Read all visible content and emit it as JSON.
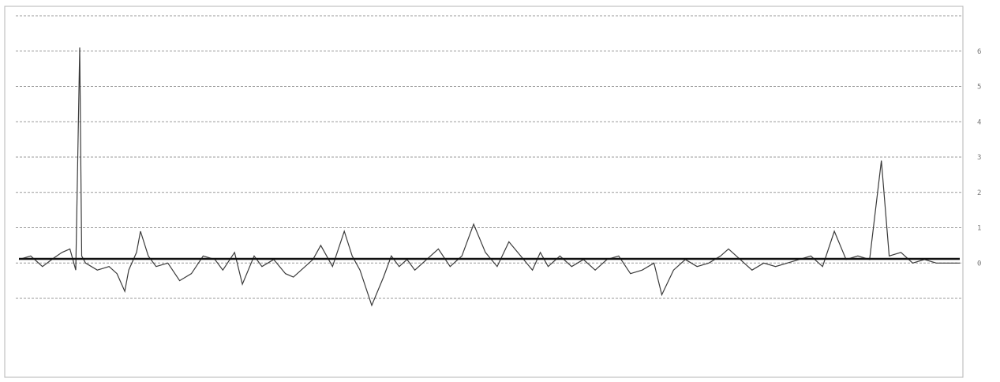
{
  "chart_data": {
    "type": "line",
    "title": "",
    "xlabel": "",
    "ylabel": "",
    "ylim": [
      -1,
      7
    ],
    "grid": true,
    "y_ticks": [
      "6",
      "5",
      "4",
      "3",
      "2",
      "1",
      "0"
    ],
    "annotation": "",
    "x_ticks_row1": [],
    "x_ticks_row2": [],
    "series": [
      {
        "x": [
          0,
          3,
          6,
          9,
          11,
          13,
          14.5,
          15.5,
          16,
          17,
          20,
          23,
          25,
          27,
          28,
          30,
          31,
          33,
          35,
          38,
          41,
          44,
          47,
          50,
          52,
          55,
          57,
          60,
          62,
          65,
          68,
          70,
          72,
          75,
          77,
          80,
          83,
          85,
          87,
          90,
          93,
          95,
          97,
          99,
          101,
          104,
          107,
          110,
          113,
          116,
          119,
          122,
          125,
          128,
          131,
          133,
          135,
          138,
          141,
          144,
          147,
          150,
          153,
          156,
          159,
          162,
          164,
          167,
          170,
          173,
          176,
          179,
          181,
          184,
          187,
          190,
          193,
          196,
          199,
          202,
          205,
          208,
          211,
          214,
          217,
          220,
          222,
          225,
          228,
          231,
          234,
          237,
          240
        ],
        "values": [
          0.1,
          0.2,
          -0.1,
          0.15,
          0.3,
          0.4,
          -0.2,
          6.1,
          0.2,
          0.0,
          -0.2,
          -0.1,
          -0.3,
          -0.8,
          -0.2,
          0.3,
          0.9,
          0.2,
          -0.1,
          0.0,
          -0.5,
          -0.3,
          0.2,
          0.1,
          -0.2,
          0.3,
          -0.6,
          0.2,
          -0.1,
          0.1,
          -0.3,
          -0.4,
          -0.2,
          0.1,
          0.5,
          -0.1,
          0.9,
          0.2,
          -0.2,
          -1.2,
          -0.4,
          0.2,
          -0.1,
          0.1,
          -0.2,
          0.1,
          0.4,
          -0.1,
          0.2,
          1.1,
          0.3,
          -0.1,
          0.6,
          0.2,
          -0.2,
          0.3,
          -0.1,
          0.2,
          -0.1,
          0.1,
          -0.2,
          0.1,
          0.2,
          -0.3,
          -0.2,
          0.0,
          -0.9,
          -0.2,
          0.1,
          -0.1,
          0.0,
          0.2,
          0.4,
          0.1,
          -0.2,
          0.0,
          -0.1,
          0.0,
          0.1,
          0.2,
          -0.1,
          0.9,
          0.1,
          0.2,
          0.1,
          2.9,
          0.2,
          0.3,
          0.0,
          0.1,
          0.0,
          0.0,
          0.0
        ]
      }
    ]
  }
}
